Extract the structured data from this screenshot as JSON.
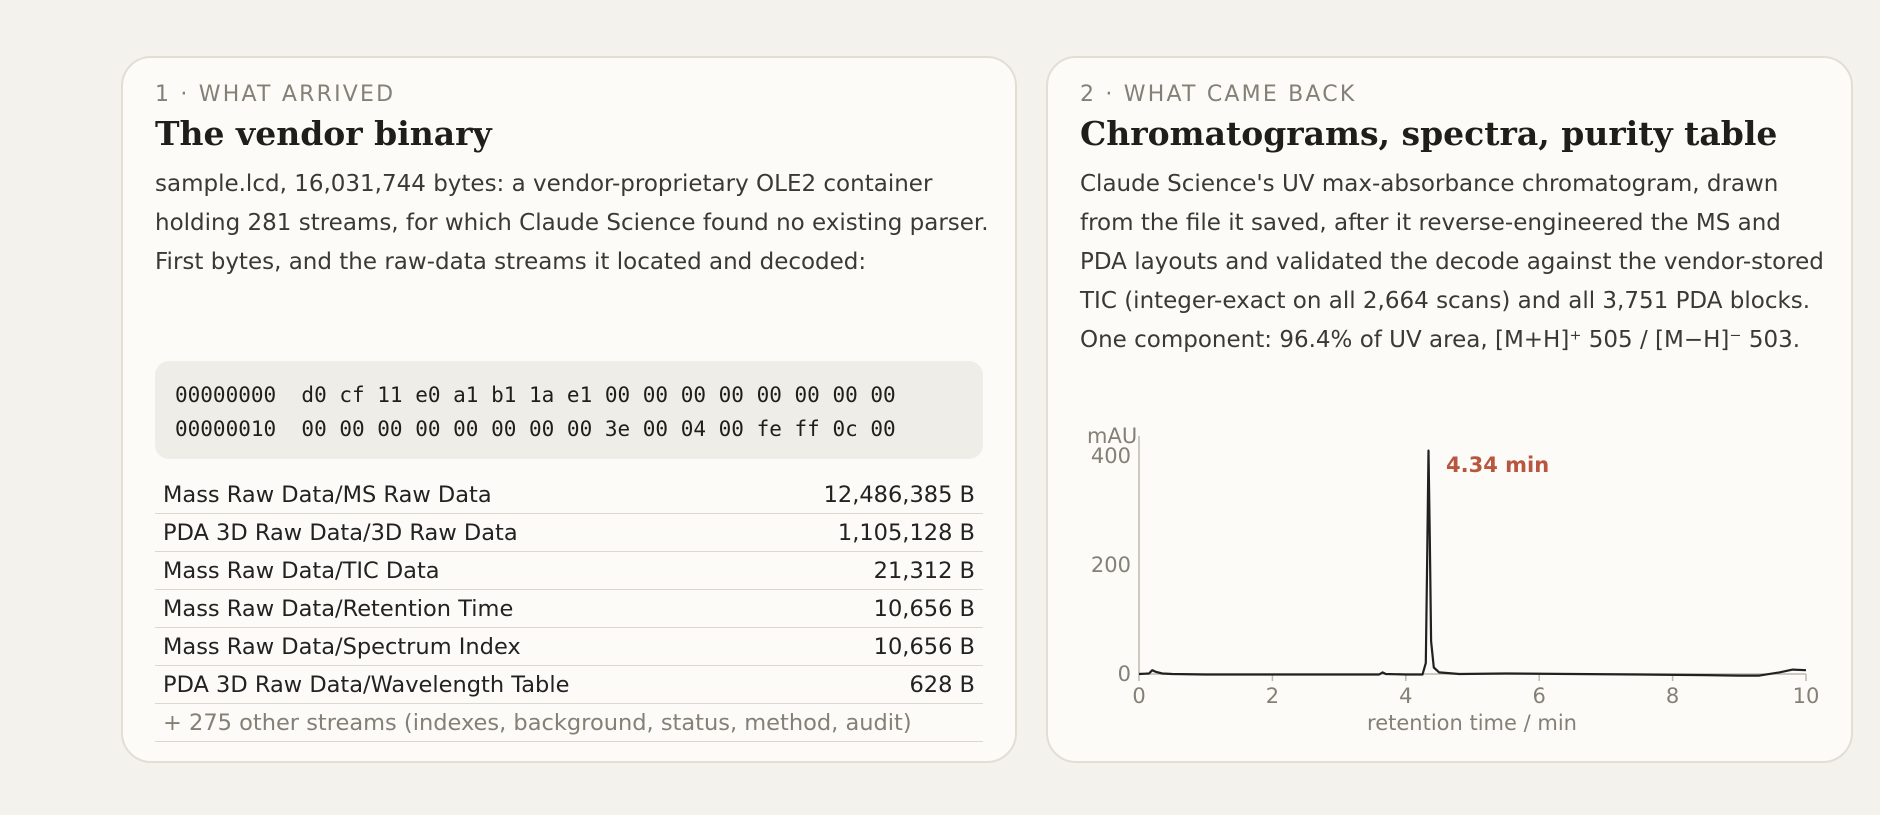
{
  "left": {
    "kicker": "1 · WHAT ARRIVED",
    "title": "The vendor binary",
    "description": "sample.lcd, 16,031,744 bytes: a vendor-proprietary OLE2 container holding 281 streams, for which Claude Science found no existing parser. First bytes, and the raw-data streams it located and decoded:",
    "hex_lines": [
      "00000000  d0 cf 11 e0 a1 b1 1a e1 00 00 00 00 00 00 00 00",
      "00000010  00 00 00 00 00 00 00 00 3e 00 04 00 fe ff 0c 00"
    ],
    "streams": [
      {
        "name": "Mass Raw Data/MS Raw Data",
        "size": "12,486,385 B"
      },
      {
        "name": "PDA 3D Raw Data/3D Raw Data",
        "size": "1,105,128 B"
      },
      {
        "name": "Mass Raw Data/TIC Data",
        "size": "21,312 B"
      },
      {
        "name": "Mass Raw Data/Retention Time",
        "size": "10,656 B"
      },
      {
        "name": "Mass Raw Data/Spectrum Index",
        "size": "10,656 B"
      },
      {
        "name": "PDA 3D Raw Data/Wavelength Table",
        "size": "628 B"
      }
    ],
    "more_streams": "+ 275 other streams (indexes, background, status, method, audit)"
  },
  "right": {
    "kicker": "2 · WHAT CAME BACK",
    "title": "Chromatograms, spectra, purity table",
    "description": "Claude Science's UV max-absorbance chromatogram, drawn from the file it saved, after it reverse-engineered the MS and PDA layouts and validated the decode against the vendor-stored TIC (integer-exact on all 2,664 scans) and all 3,751 PDA blocks. One component: 96.4% of UV area, [M+H]⁺ 505 / [M−H]⁻ 503."
  },
  "chart_data": {
    "type": "line",
    "ylabel": "mAU",
    "xlabel": "retention time / min",
    "xlim": [
      0,
      10
    ],
    "ylim": [
      0,
      400
    ],
    "x_ticks": [
      "0",
      "2",
      "4",
      "6",
      "8",
      "10"
    ],
    "y_ticks": [
      "0",
      "200",
      "400"
    ],
    "annotation": {
      "text": "4.34 min",
      "x": 4.34,
      "color": "#b9563f"
    },
    "series": [
      {
        "x": [
          0,
          0.15,
          0.2,
          0.25,
          0.35,
          0.5,
          1.0,
          2.0,
          3.0,
          3.6,
          3.65,
          3.7,
          4.0,
          4.25,
          4.3,
          4.32,
          4.34,
          4.36,
          4.38,
          4.42,
          4.5,
          4.8,
          5.5,
          6.5,
          7.5,
          8.5,
          9.0,
          9.3,
          9.6,
          9.8,
          10.0
        ],
        "y": [
          0,
          1,
          7,
          4,
          1,
          0,
          -1,
          -1,
          -1,
          -1,
          3,
          0,
          -1,
          -1,
          20,
          200,
          410,
          250,
          60,
          12,
          3,
          0,
          1,
          0,
          -1,
          -2,
          -3,
          -3,
          3,
          8,
          7
        ]
      }
    ]
  }
}
